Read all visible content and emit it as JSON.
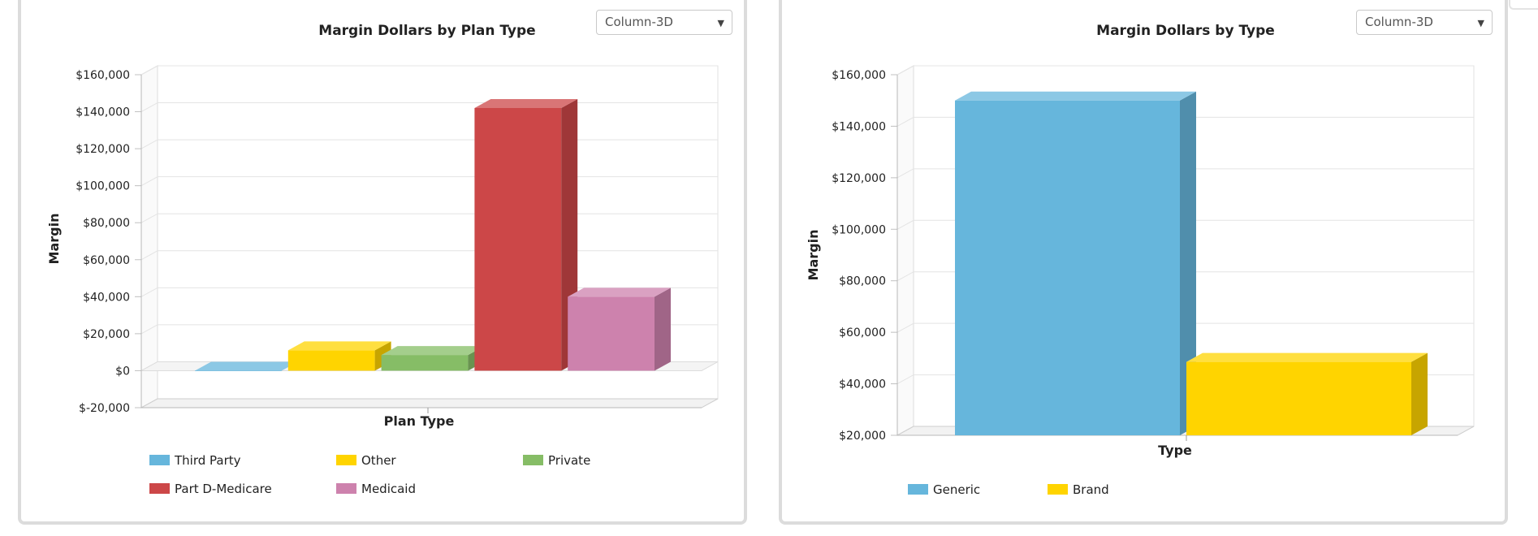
{
  "chart_data": [
    {
      "type": "bar",
      "title": "Margin Dollars by Plan Type",
      "xlabel": "Plan Type",
      "ylabel": "Margin",
      "ylim": [
        -20000,
        160000
      ],
      "yticks": [
        -20000,
        0,
        20000,
        40000,
        60000,
        80000,
        100000,
        120000,
        140000,
        160000
      ],
      "ytick_labels": [
        "$-20,000",
        "$0",
        "$20,000",
        "$40,000",
        "$60,000",
        "$80,000",
        "$100,000",
        "$120,000",
        "$140,000",
        "$160,000"
      ],
      "chart_style": "Column-3D",
      "legend_position": "bottom",
      "grid": true,
      "series": [
        {
          "name": "Third Party",
          "value": 0,
          "color": "#66b6dc"
        },
        {
          "name": "Other",
          "value": 11000,
          "color": "#ffd400"
        },
        {
          "name": "Private",
          "value": 8500,
          "color": "#86bd66"
        },
        {
          "name": "Part D-Medicare",
          "value": 142000,
          "color": "#cc4748"
        },
        {
          "name": "Medicaid",
          "value": 40000,
          "color": "#cd82ad"
        }
      ]
    },
    {
      "type": "bar",
      "title": "Margin Dollars by Type",
      "xlabel": "Type",
      "ylabel": "Margin",
      "ylim": [
        20000,
        160000
      ],
      "yticks": [
        20000,
        40000,
        60000,
        80000,
        100000,
        120000,
        140000,
        160000
      ],
      "ytick_labels": [
        "$20,000",
        "$40,000",
        "$60,000",
        "$80,000",
        "$100,000",
        "$120,000",
        "$140,000",
        "$160,000"
      ],
      "chart_style": "Column-3D",
      "legend_position": "bottom",
      "grid": true,
      "series": [
        {
          "name": "Generic",
          "value": 150000,
          "color": "#66b6dc"
        },
        {
          "name": "Brand",
          "value": 48500,
          "color": "#ffd400"
        }
      ]
    }
  ],
  "controls": {
    "left_chart_type": "Column-3D",
    "right_chart_type": "Column-3D",
    "dropdown_arrow": "▼"
  }
}
